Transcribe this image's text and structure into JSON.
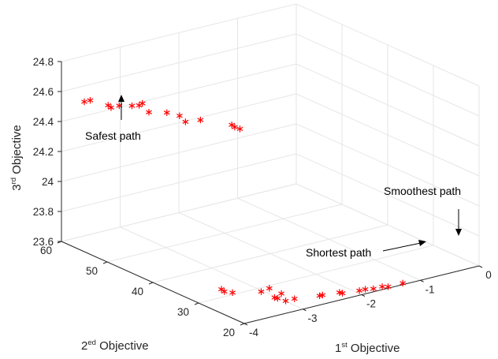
{
  "chart_data": {
    "type": "scatter",
    "dims": 3,
    "xlabel": {
      "pre": "1",
      "sup": "st",
      "post": " Objective"
    },
    "ylabel": {
      "pre": "2",
      "sup": "ed",
      "post": " Objective"
    },
    "zlabel": {
      "pre": "3",
      "sup": "rd",
      "post": " Objective"
    },
    "xlim": [
      -4,
      0
    ],
    "ylim": [
      20,
      60
    ],
    "zlim": [
      23.6,
      24.8
    ],
    "xticks": [
      "-4",
      "-3",
      "-2",
      "-1",
      "0"
    ],
    "yticks": [
      "20",
      "30",
      "40",
      "50",
      "60"
    ],
    "zticks": [
      "23.6",
      "23.8",
      "24",
      "24.2",
      "24.4",
      "24.6",
      "24.8"
    ],
    "grid": true,
    "marker": "*",
    "marker_color": "#ff0000",
    "points": [
      [
        -4.0,
        55.0,
        24.6
      ],
      [
        -3.9,
        55.0,
        24.6
      ],
      [
        -3.75,
        53.0,
        24.58
      ],
      [
        -3.7,
        53.0,
        24.56
      ],
      [
        -3.6,
        52.5,
        24.57
      ],
      [
        -3.5,
        51.0,
        24.58
      ],
      [
        -3.4,
        50.0,
        24.6
      ],
      [
        -3.3,
        52.0,
        24.55
      ],
      [
        -3.25,
        50.5,
        24.52
      ],
      [
        -3.1,
        48.5,
        24.53
      ],
      [
        -3.0,
        47.0,
        24.52
      ],
      [
        -2.9,
        47.0,
        24.47
      ],
      [
        -2.8,
        45.0,
        24.5
      ],
      [
        -2.5,
        42.0,
        24.48
      ],
      [
        -2.45,
        42.0,
        24.46
      ],
      [
        -2.4,
        41.5,
        24.45
      ],
      [
        -4.0,
        25.0,
        23.76
      ],
      [
        -3.95,
        25.0,
        23.74
      ],
      [
        -3.85,
        24.5,
        23.73
      ],
      [
        -3.4,
        24.0,
        23.7
      ],
      [
        -3.3,
        23.5,
        23.72
      ],
      [
        -3.25,
        23.0,
        23.66
      ],
      [
        -3.2,
        23.0,
        23.65
      ],
      [
        -3.15,
        22.8,
        23.68
      ],
      [
        -3.1,
        22.5,
        23.63
      ],
      [
        -2.95,
        22.5,
        23.63
      ],
      [
        -2.6,
        21.5,
        23.63
      ],
      [
        -2.55,
        21.5,
        23.63
      ],
      [
        -2.3,
        21.0,
        23.63
      ],
      [
        -2.25,
        21.0,
        23.62
      ],
      [
        -2.0,
        20.5,
        23.62
      ],
      [
        -1.9,
        20.5,
        23.62
      ],
      [
        -1.8,
        20.0,
        23.62
      ],
      [
        -1.65,
        20.0,
        23.62
      ],
      [
        -1.55,
        20.0,
        23.61
      ],
      [
        -1.3,
        20.0,
        23.61
      ]
    ],
    "annotations": [
      {
        "id": "safest",
        "text": "Safest path"
      },
      {
        "id": "smoothest",
        "text": "Smoothest path"
      },
      {
        "id": "shortest",
        "text": "Shortest path"
      }
    ]
  }
}
